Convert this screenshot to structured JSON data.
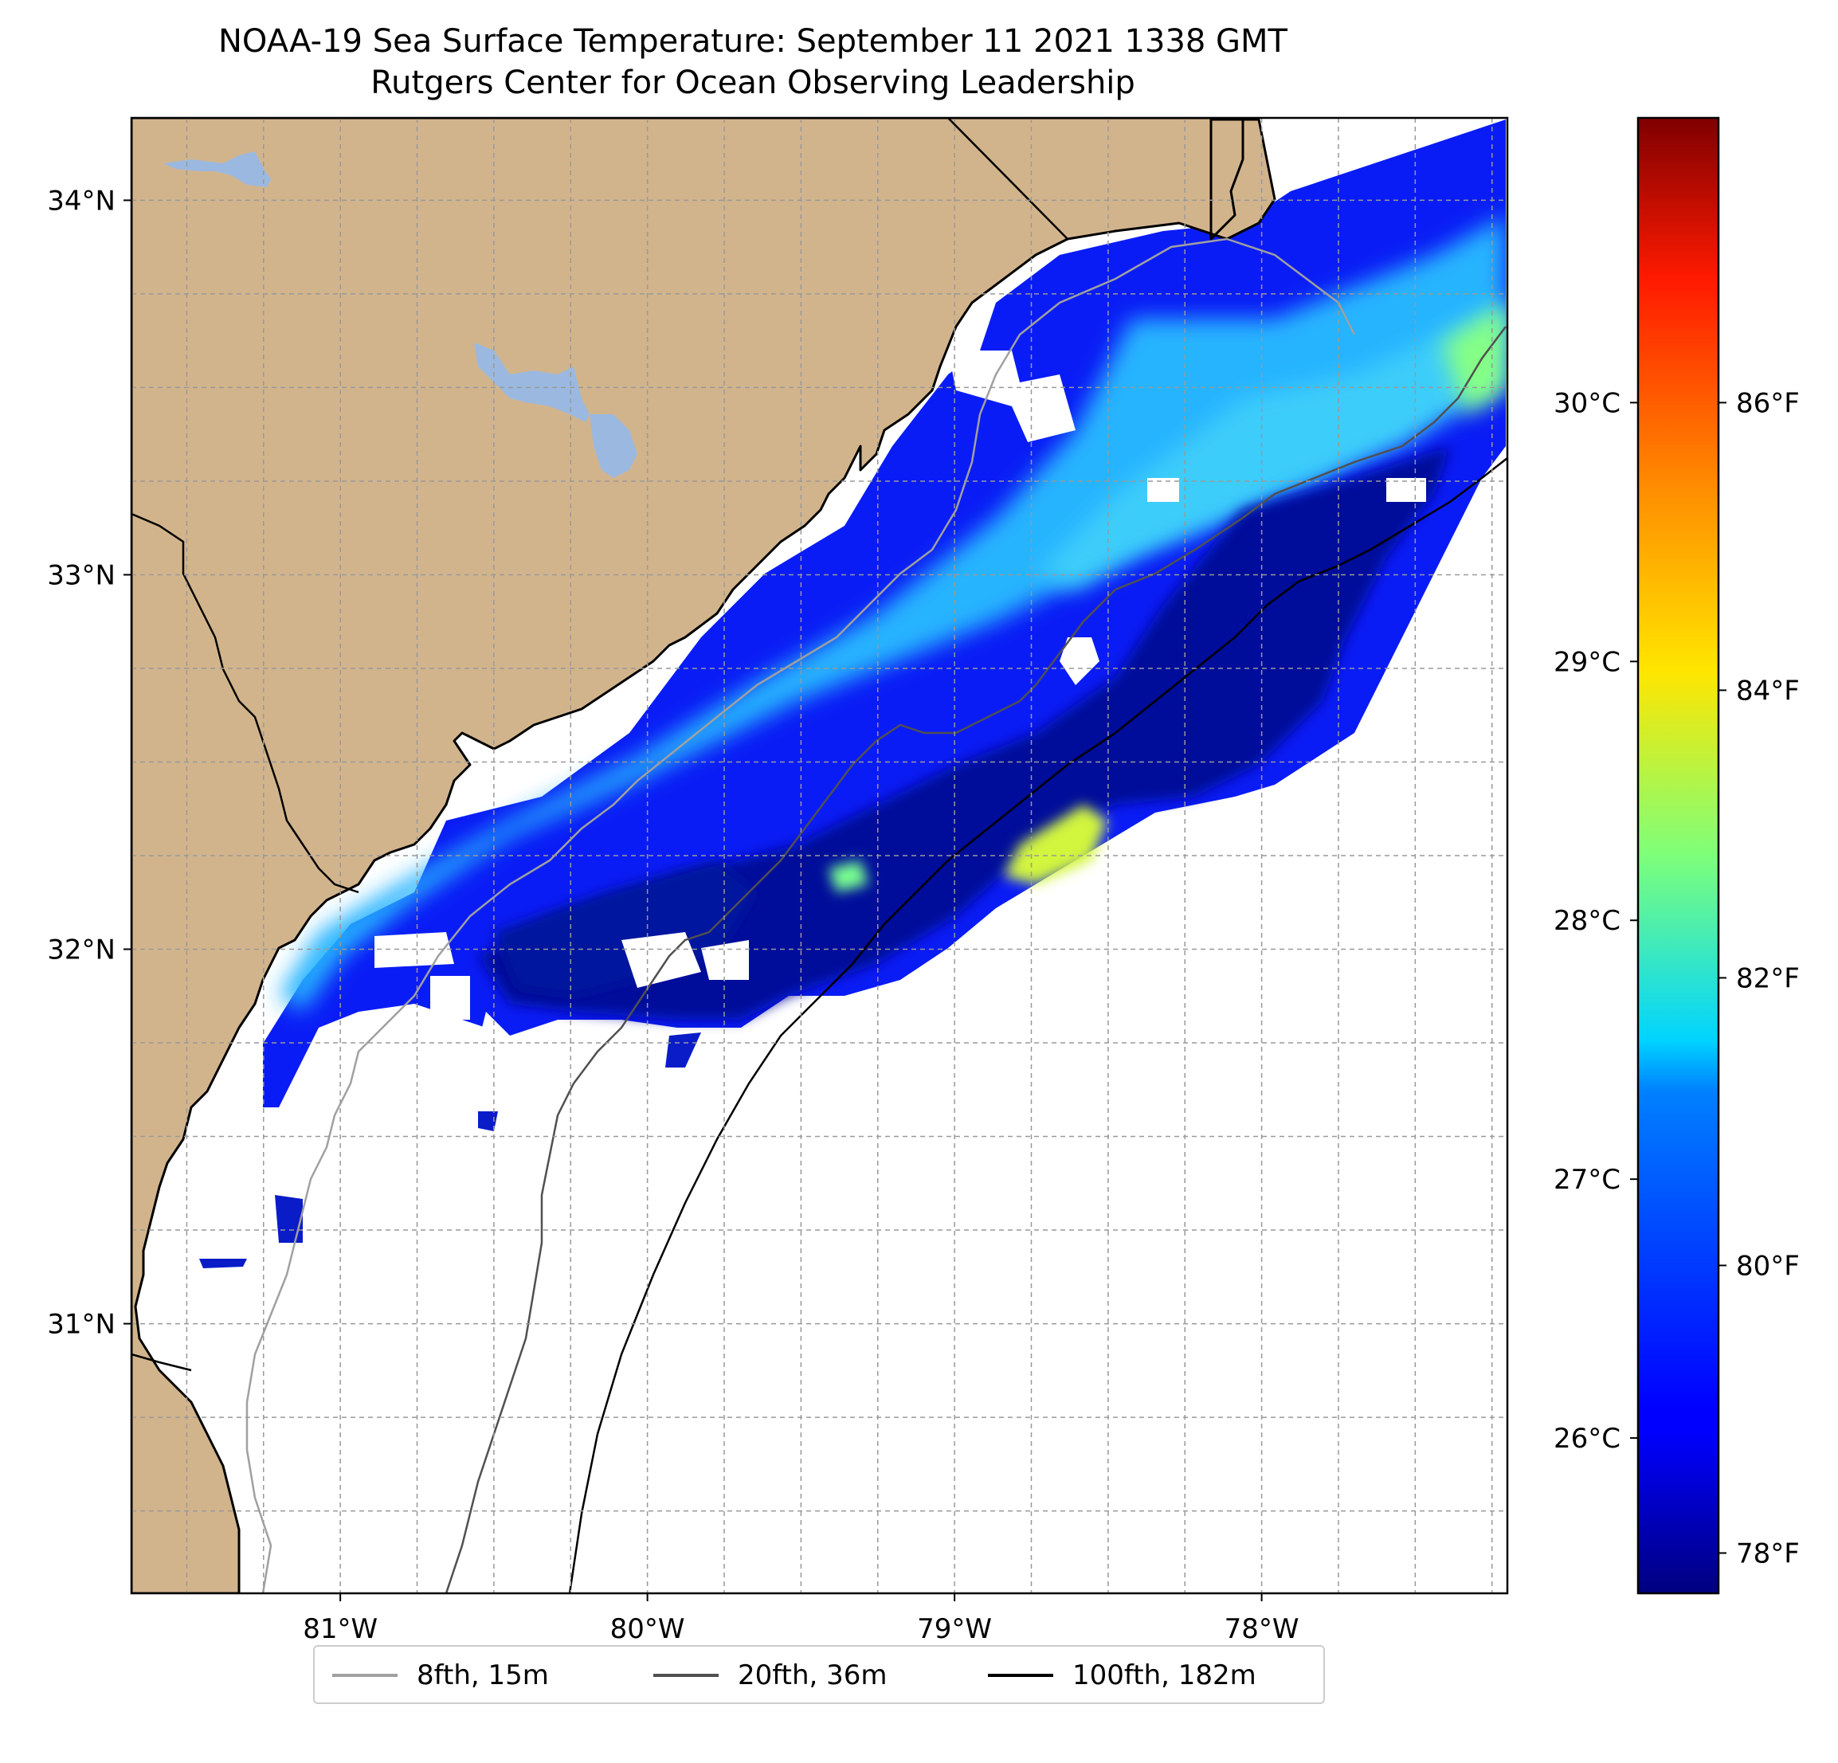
{
  "title": {
    "line1": "NOAA-19 Sea Surface Temperature: September 11 2021 1338 GMT",
    "line2": "Rutgers Center for Ocean Observing Leadership"
  },
  "map": {
    "type": "sea-surface-temperature-map",
    "lon_range": [
      -81.68,
      -77.2
    ],
    "lat_range": [
      30.28,
      34.22
    ],
    "longitude_ticks": [
      {
        "value": -81,
        "label": "81°W"
      },
      {
        "value": -80,
        "label": "80°W"
      },
      {
        "value": -79,
        "label": "79°W"
      },
      {
        "value": -78,
        "label": "78°W"
      }
    ],
    "latitude_ticks": [
      {
        "value": 34,
        "label": "34°N"
      },
      {
        "value": 33,
        "label": "33°N"
      },
      {
        "value": 32,
        "label": "32°N"
      },
      {
        "value": 31,
        "label": "31°N"
      }
    ],
    "gridlines": true,
    "grid_spacing_minor_deg": 0.25,
    "land_color": "#d2b48c",
    "lake_color": "#9bb9e0",
    "no_data_color": "#ffffff",
    "colormap": "jet",
    "colorbar": {
      "celsius_ticks": [
        {
          "value": 26,
          "label": "26°C"
        },
        {
          "value": 27,
          "label": "27°C"
        },
        {
          "value": 28,
          "label": "28°C"
        },
        {
          "value": 29,
          "label": "29°C"
        },
        {
          "value": 30,
          "label": "30°C"
        }
      ],
      "fahrenheit_ticks": [
        {
          "value": 78,
          "label": "78°F"
        },
        {
          "value": 80,
          "label": "80°F"
        },
        {
          "value": 82,
          "label": "82°F"
        },
        {
          "value": 84,
          "label": "84°F"
        },
        {
          "value": 86,
          "label": "86°F"
        }
      ],
      "range_celsius": [
        25.4,
        31.1
      ]
    }
  },
  "legend": {
    "entries": [
      {
        "label": "8fth, 15m",
        "color": "#a0a0a0"
      },
      {
        "label": "20fth, 36m",
        "color": "#505050"
      },
      {
        "label": "100fth, 182m",
        "color": "#000000"
      }
    ]
  }
}
